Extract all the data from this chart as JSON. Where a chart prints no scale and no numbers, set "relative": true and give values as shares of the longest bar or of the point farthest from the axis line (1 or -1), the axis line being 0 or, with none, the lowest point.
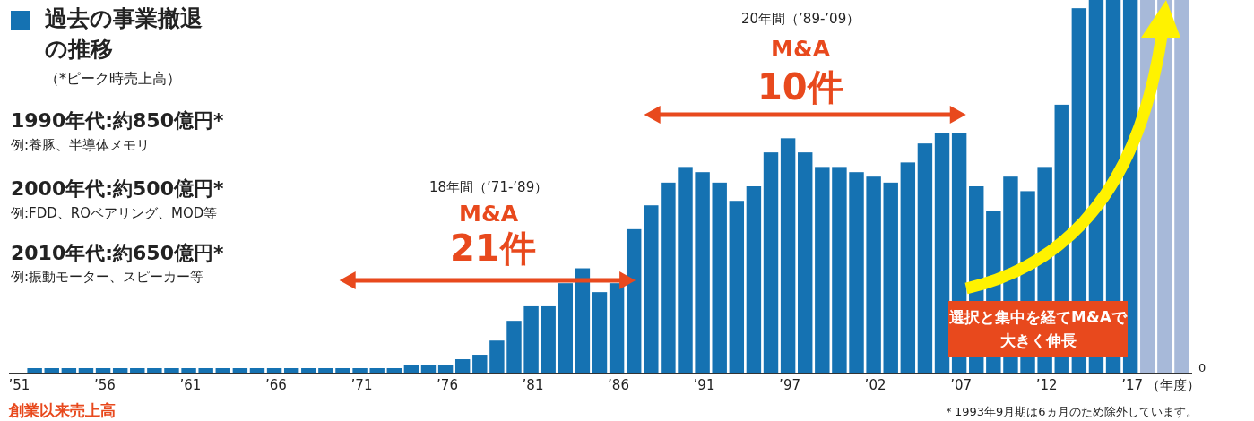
{
  "chart_data": {
    "type": "bar",
    "title": "過去の事業撤退の推移",
    "subtitle": "（*ピーク時売上高）",
    "xlabel": "（年度）",
    "relative": true,
    "categories": [
      "’51",
      null,
      null,
      null,
      null,
      "’56",
      null,
      null,
      null,
      null,
      "’61",
      null,
      null,
      null,
      null,
      "’66",
      null,
      null,
      null,
      null,
      "’71",
      null,
      null,
      null,
      null,
      "’76",
      null,
      null,
      null,
      null,
      "’81",
      null,
      null,
      null,
      null,
      "’86",
      null,
      null,
      null,
      null,
      "’91",
      null,
      null,
      null,
      null,
      "’97",
      null,
      null,
      null,
      null,
      "’02",
      null,
      null,
      null,
      null,
      "’07",
      null,
      null,
      null,
      null,
      "’12",
      null,
      null,
      null,
      null,
      "’17",
      null,
      null,
      null
    ],
    "values": [
      0,
      0.012,
      0.012,
      0.012,
      0.012,
      0.012,
      0.012,
      0.012,
      0.012,
      0.012,
      0.012,
      0.012,
      0.012,
      0.012,
      0.012,
      0.012,
      0.012,
      0.012,
      0.012,
      0.012,
      0.012,
      0.012,
      0.012,
      0.021,
      0.021,
      0.021,
      0.036,
      0.048,
      0.086,
      0.139,
      0.178,
      0.178,
      0.24,
      0.28,
      0.216,
      0.24,
      0.385,
      0.449,
      0.51,
      0.552,
      0.538,
      0.51,
      0.461,
      0.5,
      0.591,
      0.629,
      0.591,
      0.552,
      0.552,
      0.538,
      0.526,
      0.51,
      0.564,
      0.615,
      0.642,
      0.642,
      0.5,
      0.435,
      0.526,
      0.487,
      0.552,
      0.719,
      0.978,
      1,
      1,
      1,
      1,
      1,
      1
    ],
    "colors": [
      "#1572b2",
      "#1572b2",
      "#1572b2",
      "#1572b2",
      "#1572b2",
      "#1572b2",
      "#1572b2",
      "#1572b2",
      "#1572b2",
      "#1572b2",
      "#1572b2",
      "#1572b2",
      "#1572b2",
      "#1572b2",
      "#1572b2",
      "#1572b2",
      "#1572b2",
      "#1572b2",
      "#1572b2",
      "#1572b2",
      "#1572b2",
      "#1572b2",
      "#1572b2",
      "#1572b2",
      "#1572b2",
      "#1572b2",
      "#1572b2",
      "#1572b2",
      "#1572b2",
      "#1572b2",
      "#1572b2",
      "#1572b2",
      "#1572b2",
      "#1572b2",
      "#1572b2",
      "#1572b2",
      "#1572b2",
      "#1572b2",
      "#1572b2",
      "#1572b2",
      "#1572b2",
      "#1572b2",
      "#1572b2",
      "#1572b2",
      "#1572b2",
      "#1572b2",
      "#1572b2",
      "#1572b2",
      "#1572b2",
      "#1572b2",
      "#1572b2",
      "#1572b2",
      "#1572b2",
      "#1572b2",
      "#1572b2",
      "#1572b2",
      "#1572b2",
      "#1572b2",
      "#1572b2",
      "#1572b2",
      "#1572b2",
      "#1572b2",
      "#1572b2",
      "#1572b2",
      "#1572b2",
      "#1572b2",
      "#a7b9d9",
      "#a7b9d9",
      "#a7b9d9"
    ],
    "annotations": [
      "1990年代:約850億円*",
      "例:養豚、半導体メモリ",
      "2000年代:約500億円*",
      "例:FDD、ROベアリング、MOD等",
      "2010年代:約650億円*",
      "例:振動モーター、スピーカー等",
      "18年間（’71-’89）",
      "M&A",
      "21件",
      "20年間（’89-’09）",
      "M&A",
      "10件",
      "選択と集中を経てM&Aで大きく伸長",
      "創業以来売上高",
      "＊1993年9月期は6ヵ月のため除外しています。",
      "0"
    ]
  }
}
